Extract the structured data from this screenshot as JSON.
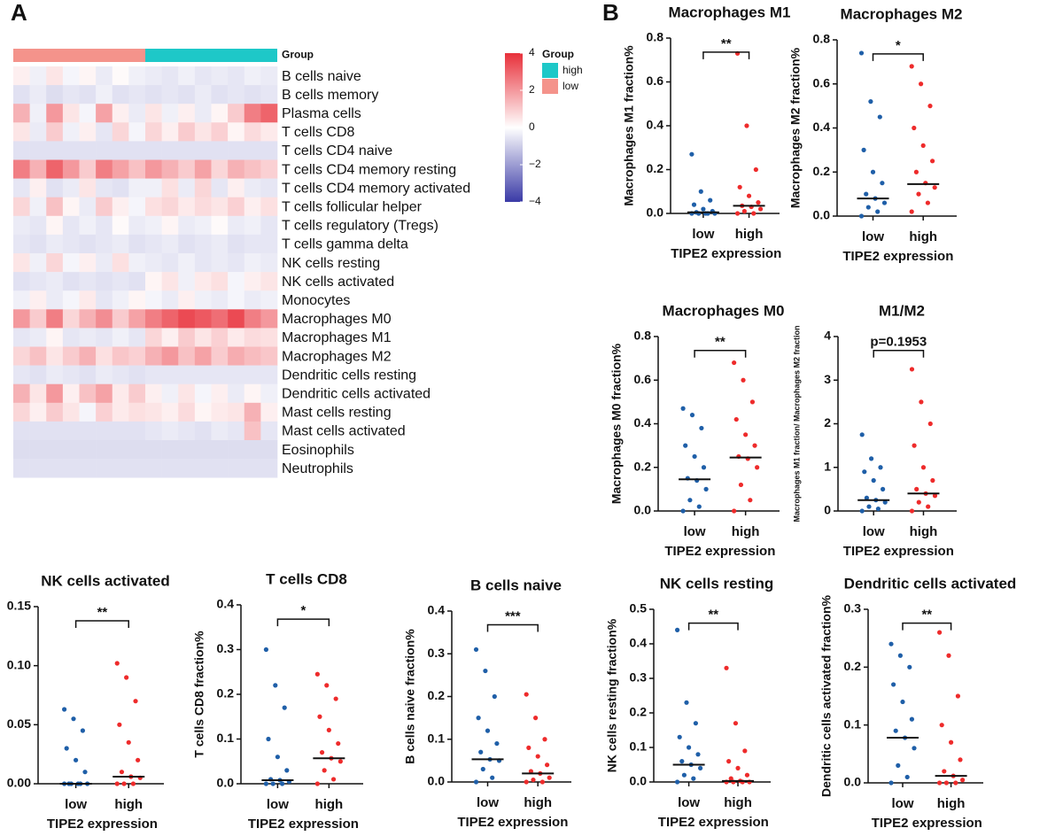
{
  "panel_labels": [
    "A",
    "B"
  ],
  "chart_data": [
    {
      "type": "heatmap",
      "annotation_title": "Group",
      "legend_title": "Group",
      "rows": [
        "B cells naive",
        "B cells memory",
        "Plasma cells",
        "T cells CD8",
        "T cells CD4 naive",
        "T cells CD4 memory resting",
        "T cells CD4 memory activated",
        "T cells follicular helper",
        "T cells regulatory (Tregs)",
        "T cells gamma delta",
        "NK cells resting",
        "NK cells activated",
        "Monocytes",
        "Macrophages M0",
        "Macrophages M1",
        "Macrophages M2",
        "Dendritic cells resting",
        "Dendritic cells activated",
        "Mast cells resting",
        "Mast cells activated",
        "Eosinophils",
        "Neutrophils"
      ],
      "zlim": [
        -4,
        4
      ],
      "zticks": [
        4,
        2,
        0,
        {
          "value": -2,
          "label": "−2"
        },
        {
          "value": -4,
          "label": "−4"
        }
      ],
      "colorscale": [
        "#3a3aa6",
        "#ffffff",
        "#e8303a"
      ],
      "legend": [
        {
          "name": "high",
          "color": "#1ec8c8"
        },
        {
          "name": "low",
          "color": "#f4938b"
        }
      ],
      "groups": [
        {
          "name": "low",
          "color": "#f4938b",
          "values": [
            [
              0.3,
              -0.3,
              0.5,
              -0.2,
              0.2,
              -0.4,
              0.1,
              -0.3
            ],
            [
              -0.6,
              -0.4,
              -0.7,
              -0.5,
              -0.6,
              -0.3,
              -0.6,
              -0.5
            ],
            [
              1.5,
              -0.3,
              2,
              0.5,
              -0.2,
              1.8,
              0.3,
              -0.4
            ],
            [
              0.5,
              -0.4,
              1,
              -0.3,
              0.3,
              -0.5,
              0.8,
              -0.2
            ],
            [
              -0.6,
              -0.6,
              -0.6,
              -0.6,
              -0.6,
              -0.6,
              -0.6,
              -0.6
            ],
            [
              2.5,
              1.5,
              3,
              2,
              1,
              2.5,
              1.8,
              1.2
            ],
            [
              -0.5,
              0.3,
              -0.6,
              -0.4,
              0.5,
              -0.5,
              -0.6,
              -0.3
            ],
            [
              0.8,
              -0.3,
              1.2,
              0.2,
              -0.4,
              1,
              0.3,
              -0.2
            ],
            [
              -0.4,
              -0.5,
              0.2,
              -0.5,
              -0.3,
              -0.5,
              0.1,
              -0.4
            ],
            [
              -0.5,
              -0.6,
              -0.4,
              -0.5,
              -0.6,
              -0.5,
              -0.4,
              -0.6
            ],
            [
              0.5,
              -0.3,
              0.8,
              -0.2,
              0.3,
              -0.4,
              0.6,
              -0.3
            ],
            [
              -0.6,
              -0.5,
              -0.4,
              -0.6,
              -0.5,
              -0.6,
              -0.5,
              -0.6
            ],
            [
              -0.3,
              0.3,
              -0.4,
              -0.2,
              0.4,
              -0.5,
              -0.3,
              0.2
            ],
            [
              2,
              1,
              2.5,
              0.8,
              1.5,
              2.2,
              1,
              1.8
            ],
            [
              -0.5,
              -0.4,
              0.2,
              -0.5,
              -0.4,
              -0.5,
              -0.3,
              -0.5
            ],
            [
              0.8,
              1.2,
              0.5,
              1,
              1.5,
              0.6,
              1.1,
              0.9
            ],
            [
              -0.5,
              -0.6,
              -0.4,
              -0.5,
              -0.6,
              -0.4,
              -0.5,
              -0.6
            ],
            [
              1.5,
              0.5,
              2,
              0.3,
              1.2,
              1.8,
              0.4,
              1
            ],
            [
              0.8,
              0.3,
              1,
              0.5,
              -0.2,
              0.9,
              0.4,
              0.6
            ],
            [
              -0.6,
              -0.6,
              -0.6,
              -0.6,
              -0.6,
              -0.6,
              -0.6,
              -0.6
            ],
            [
              -0.7,
              -0.7,
              -0.7,
              -0.7,
              -0.7,
              -0.7,
              -0.7,
              -0.7
            ],
            [
              -0.6,
              -0.6,
              -0.6,
              -0.6,
              -0.6,
              -0.6,
              -0.6,
              -0.6
            ]
          ]
        },
        {
          "name": "high",
          "color": "#1ec8c8",
          "values": [
            [
              -0.4,
              -0.5,
              -0.3,
              -0.5,
              -0.4,
              -0.5,
              -0.3,
              -0.4
            ],
            [
              -0.6,
              -0.5,
              -0.6,
              -0.4,
              -0.6,
              -0.5,
              -0.6,
              -0.5
            ],
            [
              0.5,
              -0.3,
              0.3,
              -0.4,
              0.2,
              1,
              2.5,
              3
            ],
            [
              0.8,
              0.3,
              1,
              0.5,
              0.9,
              0.2,
              0.7,
              0.4
            ],
            [
              -0.6,
              -0.6,
              -0.6,
              -0.6,
              -0.6,
              -0.6,
              -0.6,
              -0.6
            ],
            [
              2,
              1.5,
              1,
              1.8,
              0.8,
              1.5,
              1.2,
              0.9
            ],
            [
              -0.3,
              0.6,
              -0.4,
              0.8,
              -0.5,
              0.3,
              -0.4,
              -0.5
            ],
            [
              0.6,
              0.8,
              0.4,
              0.7,
              0.5,
              0.9,
              0.3,
              0.6
            ],
            [
              -0.3,
              0.2,
              -0.4,
              -0.3,
              0.1,
              -0.4,
              -0.3,
              -0.5
            ],
            [
              -0.5,
              -0.4,
              -0.6,
              -0.5,
              -0.4,
              -0.6,
              -0.5,
              -0.5
            ],
            [
              -0.4,
              -0.5,
              -0.3,
              -0.5,
              -0.4,
              -0.5,
              -0.3,
              -0.4
            ],
            [
              0.2,
              0.5,
              -0.3,
              0.4,
              0.6,
              -0.2,
              0.3,
              0.5
            ],
            [
              -0.2,
              -0.4,
              0.3,
              -0.3,
              -0.4,
              -0.2,
              -0.4,
              -0.3
            ],
            [
              2.5,
              3,
              3.5,
              3.2,
              2.8,
              3.5,
              2.5,
              2
            ],
            [
              0.8,
              0.3,
              1,
              0.5,
              0.9,
              0.4,
              0.7,
              0.6
            ],
            [
              1.5,
              2,
              1.2,
              1.8,
              1,
              1.6,
              1.3,
              1.1
            ],
            [
              -0.5,
              -0.5,
              -0.5,
              -0.5,
              -0.5,
              -0.5,
              -0.5,
              -0.5
            ],
            [
              0.3,
              -0.3,
              0.5,
              -0.2,
              0.3,
              -0.4,
              0.2,
              -0.3
            ],
            [
              0.5,
              0.3,
              0.7,
              0.2,
              0.4,
              0.5,
              1.5,
              0.3
            ],
            [
              -0.5,
              -0.4,
              -0.5,
              -0.6,
              -0.4,
              -0.5,
              1.2,
              -0.5
            ],
            [
              -0.7,
              -0.7,
              -0.7,
              -0.7,
              -0.7,
              -0.7,
              -0.7,
              -0.7
            ],
            [
              -0.6,
              -0.6,
              -0.6,
              -0.6,
              -0.6,
              -0.6,
              -0.6,
              -0.6
            ]
          ]
        }
      ]
    },
    {
      "type": "dot",
      "title": "Macrophages M1",
      "ylabel": "Macrophages M1 fraction%",
      "xlabel": "TIPE2 expression",
      "annotation": "**",
      "categories": [
        "low",
        "high"
      ],
      "colors": [
        "#1f5fa8",
        "#ee2b2b"
      ],
      "ylim": [
        0,
        0.8
      ],
      "yticks": [
        {
          "value": 0,
          "label": "0.0"
        },
        0.2,
        0.4,
        0.6,
        0.8
      ],
      "values": [
        [
          0,
          0,
          0,
          0,
          0,
          0.005,
          0.01,
          0.02,
          0.04,
          0.06,
          0.1,
          0.27
        ],
        [
          0,
          0,
          0.01,
          0.02,
          0.03,
          0.035,
          0.05,
          0.08,
          0.12,
          0.2,
          0.4,
          0.73
        ]
      ],
      "medians": [
        0.005,
        0.035
      ]
    },
    {
      "type": "dot",
      "title": "Macrophages M2",
      "ylabel": "Macrophages M2 fraction%",
      "xlabel": "TIPE2 expression",
      "annotation": "*",
      "categories": [
        "low",
        "high"
      ],
      "colors": [
        "#1f5fa8",
        "#ee2b2b"
      ],
      "ylim": [
        0,
        0.8
      ],
      "yticks": [
        {
          "value": 0,
          "label": "0.0"
        },
        0.2,
        0.4,
        0.6,
        0.8
      ],
      "values": [
        [
          0,
          0.02,
          0.04,
          0.06,
          0.08,
          0.1,
          0.15,
          0.2,
          0.3,
          0.45,
          0.52,
          0.74
        ],
        [
          0.02,
          0.06,
          0.1,
          0.13,
          0.15,
          0.2,
          0.25,
          0.32,
          0.4,
          0.5,
          0.6,
          0.68
        ]
      ],
      "medians": [
        0.08,
        0.145
      ]
    },
    {
      "type": "dot",
      "title": "Macrophages M0",
      "ylabel": "Macrophages M0 fraction%",
      "xlabel": "TIPE2 expression",
      "annotation": "**",
      "categories": [
        "low",
        "high"
      ],
      "colors": [
        "#1f5fa8",
        "#ee2b2b"
      ],
      "ylim": [
        0,
        0.8
      ],
      "yticks": [
        {
          "value": 0,
          "label": "0.0"
        },
        0.2,
        0.4,
        0.6,
        0.8
      ],
      "values": [
        [
          0,
          0.02,
          0.05,
          0.1,
          0.14,
          0.15,
          0.2,
          0.25,
          0.3,
          0.38,
          0.44,
          0.47
        ],
        [
          0,
          0.05,
          0.12,
          0.2,
          0.24,
          0.25,
          0.3,
          0.35,
          0.42,
          0.5,
          0.6,
          0.68
        ]
      ],
      "medians": [
        0.145,
        0.245
      ]
    },
    {
      "type": "dot",
      "title": "M1/M2",
      "ylabel": "Macrophages M1 fraction/ Macrophages M2 fraction",
      "xlabel": "TIPE2 expression",
      "annotation": "p=0.1953",
      "categories": [
        "low",
        "high"
      ],
      "colors": [
        "#1f5fa8",
        "#ee2b2b"
      ],
      "ylim": [
        0,
        4
      ],
      "yticks": [
        0,
        1,
        2,
        3,
        4
      ],
      "values": [
        [
          0,
          0.05,
          0.1,
          0.2,
          0.25,
          0.3,
          0.5,
          0.7,
          0.9,
          1,
          1.2,
          1.75
        ],
        [
          0,
          0.1,
          0.2,
          0.35,
          0.4,
          0.5,
          0.7,
          1,
          1.5,
          2,
          2.5,
          3.25
        ]
      ],
      "medians": [
        0.25,
        0.4
      ]
    },
    {
      "type": "dot",
      "title": "NK cells activated",
      "xlabel": "TIPE2 expression",
      "annotation": "**",
      "categories": [
        "low",
        "high"
      ],
      "colors": [
        "#1f5fa8",
        "#ee2b2b"
      ],
      "ylim": [
        0,
        0.15
      ],
      "yticks": [
        {
          "value": 0,
          "label": "0.00"
        },
        0.05,
        {
          "value": 0.1,
          "label": "0.10"
        },
        0.15
      ],
      "values": [
        [
          0,
          0,
          0,
          0,
          0,
          0,
          0.01,
          0.02,
          0.03,
          0.045,
          0.055,
          0.063
        ],
        [
          0,
          0,
          0,
          0.005,
          0.006,
          0.01,
          0.02,
          0.035,
          0.05,
          0.07,
          0.09,
          0.102
        ]
      ],
      "medians": [
        0,
        0.006
      ]
    },
    {
      "type": "dot",
      "title": "T cells CD8",
      "ylabel": "T cells CD8 fraction%",
      "xlabel": "TIPE2 expression",
      "annotation": "*",
      "categories": [
        "low",
        "high"
      ],
      "colors": [
        "#1f5fa8",
        "#ee2b2b"
      ],
      "ylim": [
        0,
        0.4
      ],
      "yticks": [
        {
          "value": 0,
          "label": "0.0"
        },
        0.1,
        0.2,
        0.3,
        0.4
      ],
      "values": [
        [
          0,
          0,
          0,
          0.005,
          0.008,
          0.01,
          0.03,
          0.06,
          0.1,
          0.17,
          0.22,
          0.3
        ],
        [
          0,
          0.01,
          0.03,
          0.05,
          0.057,
          0.07,
          0.09,
          0.12,
          0.15,
          0.19,
          0.22,
          0.245
        ]
      ],
      "medians": [
        0.008,
        0.057
      ]
    },
    {
      "type": "dot",
      "title": "B cells naive",
      "ylabel": "B cells naive fraction%",
      "xlabel": "TIPE2 expression",
      "annotation": "***",
      "categories": [
        "low",
        "high"
      ],
      "colors": [
        "#1f5fa8",
        "#ee2b2b"
      ],
      "ylim": [
        0,
        0.4
      ],
      "yticks": [
        {
          "value": 0,
          "label": "0.0"
        },
        0.1,
        0.2,
        0.3,
        0.4
      ],
      "values": [
        [
          0,
          0.01,
          0.03,
          0.05,
          0.053,
          0.07,
          0.09,
          0.12,
          0.15,
          0.2,
          0.26,
          0.31
        ],
        [
          0,
          0,
          0.005,
          0.01,
          0.02,
          0.025,
          0.04,
          0.06,
          0.08,
          0.1,
          0.15,
          0.205
        ]
      ],
      "medians": [
        0.053,
        0.02
      ]
    },
    {
      "type": "dot",
      "title": "NK cells resting",
      "ylabel": "NK cells resting fraction%",
      "xlabel": "TIPE2 expression",
      "annotation": "**",
      "categories": [
        "low",
        "high"
      ],
      "colors": [
        "#1f5fa8",
        "#ee2b2b"
      ],
      "ylim": [
        0,
        0.5
      ],
      "yticks": [
        {
          "value": 0,
          "label": "0.0"
        },
        0.1,
        0.2,
        0.3,
        0.4,
        0.5
      ],
      "values": [
        [
          0,
          0.01,
          0.02,
          0.04,
          0.05,
          0.06,
          0.08,
          0.1,
          0.13,
          0.17,
          0.23,
          0.44
        ],
        [
          0,
          0,
          0,
          0,
          0.003,
          0.01,
          0.02,
          0.04,
          0.06,
          0.09,
          0.17,
          0.33
        ]
      ],
      "medians": [
        0.05,
        0.003
      ]
    },
    {
      "type": "dot",
      "title": "Dendritic cells activated",
      "ylabel": "Dendritic cells activated fraction%",
      "xlabel": "TIPE2 expression",
      "annotation": "**",
      "categories": [
        "low",
        "high"
      ],
      "colors": [
        "#1f5fa8",
        "#ee2b2b"
      ],
      "ylim": [
        0,
        0.3
      ],
      "yticks": [
        {
          "value": 0,
          "label": "0.0"
        },
        0.1,
        0.2,
        0.3
      ],
      "values": [
        [
          0,
          0.01,
          0.03,
          0.06,
          0.078,
          0.09,
          0.11,
          0.14,
          0.17,
          0.2,
          0.22,
          0.24
        ],
        [
          0,
          0,
          0,
          0.005,
          0.012,
          0.02,
          0.04,
          0.07,
          0.1,
          0.15,
          0.22,
          0.26
        ]
      ],
      "medians": [
        0.078,
        0.012
      ]
    }
  ]
}
